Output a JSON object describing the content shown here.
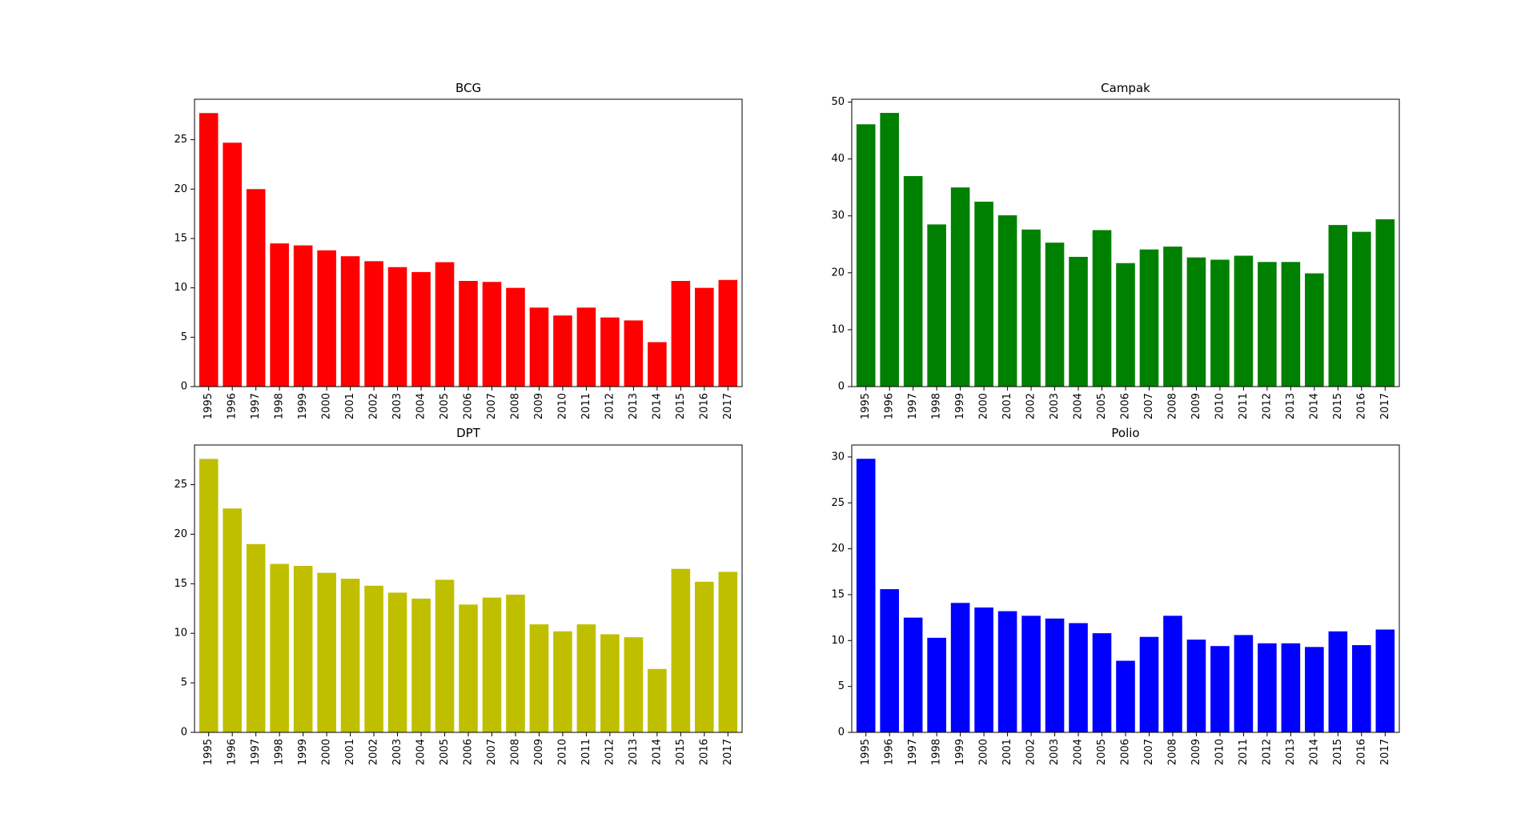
{
  "chart_data": [
    {
      "type": "bar",
      "title": "BCG",
      "color": "#ff0000",
      "categories": [
        "1995",
        "1996",
        "1997",
        "1998",
        "1999",
        "2000",
        "2001",
        "2002",
        "2003",
        "2004",
        "2005",
        "2006",
        "2007",
        "2008",
        "2009",
        "2010",
        "2011",
        "2012",
        "2013",
        "2014",
        "2015",
        "2016",
        "2017"
      ],
      "values": [
        27.7,
        24.7,
        20.0,
        14.5,
        14.3,
        13.8,
        13.2,
        12.7,
        12.1,
        11.6,
        12.6,
        10.7,
        10.6,
        10.0,
        8.0,
        7.2,
        8.0,
        7.0,
        6.7,
        4.5,
        10.7,
        10.0,
        10.8
      ],
      "yticks": [
        0,
        5,
        10,
        15,
        20,
        25
      ],
      "ylim": [
        0,
        29.1
      ],
      "xlabel": "",
      "ylabel": ""
    },
    {
      "type": "bar",
      "title": "Campak",
      "color": "#008000",
      "categories": [
        "1995",
        "1996",
        "1997",
        "1998",
        "1999",
        "2000",
        "2001",
        "2002",
        "2003",
        "2004",
        "2005",
        "2006",
        "2007",
        "2008",
        "2009",
        "2010",
        "2011",
        "2012",
        "2013",
        "2014",
        "2015",
        "2016",
        "2017"
      ],
      "values": [
        46.1,
        48.1,
        37.0,
        28.5,
        35.0,
        32.5,
        30.1,
        27.6,
        25.3,
        22.8,
        27.5,
        21.7,
        24.1,
        24.6,
        22.7,
        22.3,
        23.0,
        21.9,
        21.9,
        19.9,
        28.4,
        27.2,
        29.4
      ],
      "yticks": [
        0,
        10,
        20,
        30,
        40,
        50
      ],
      "ylim": [
        0,
        50.5
      ],
      "xlabel": "",
      "ylabel": ""
    },
    {
      "type": "bar",
      "title": "DPT",
      "color": "#bfbf00",
      "categories": [
        "1995",
        "1996",
        "1997",
        "1998",
        "1999",
        "2000",
        "2001",
        "2002",
        "2003",
        "2004",
        "2005",
        "2006",
        "2007",
        "2008",
        "2009",
        "2010",
        "2011",
        "2012",
        "2013",
        "2014",
        "2015",
        "2016",
        "2017"
      ],
      "values": [
        27.6,
        22.6,
        19.0,
        17.0,
        16.8,
        16.1,
        15.5,
        14.8,
        14.1,
        13.5,
        15.4,
        12.9,
        13.6,
        13.9,
        10.9,
        10.2,
        10.9,
        9.9,
        9.6,
        6.4,
        16.5,
        15.2,
        16.2
      ],
      "yticks": [
        0,
        5,
        10,
        15,
        20,
        25
      ],
      "ylim": [
        0,
        29.0
      ],
      "xlabel": "",
      "ylabel": ""
    },
    {
      "type": "bar",
      "title": "Polio",
      "color": "#0000ff",
      "categories": [
        "1995",
        "1996",
        "1997",
        "1998",
        "1999",
        "2000",
        "2001",
        "2002",
        "2003",
        "2004",
        "2005",
        "2006",
        "2007",
        "2008",
        "2009",
        "2010",
        "2011",
        "2012",
        "2013",
        "2014",
        "2015",
        "2016",
        "2017"
      ],
      "values": [
        29.8,
        15.6,
        12.5,
        10.3,
        14.1,
        13.6,
        13.2,
        12.7,
        12.4,
        11.9,
        10.8,
        7.8,
        10.4,
        12.7,
        10.1,
        9.4,
        10.6,
        9.7,
        9.7,
        9.3,
        11.0,
        9.5,
        11.2
      ],
      "yticks": [
        0,
        5,
        10,
        15,
        20,
        25,
        30
      ],
      "ylim": [
        0,
        31.3
      ],
      "xlabel": "",
      "ylabel": ""
    }
  ]
}
